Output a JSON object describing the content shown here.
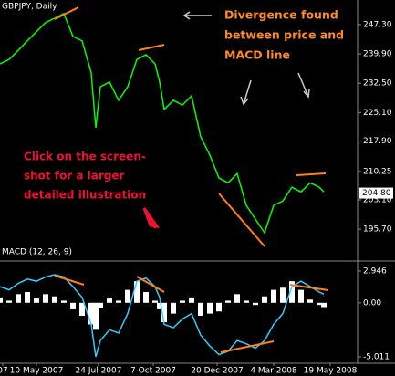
{
  "chart_data": [
    {
      "type": "line",
      "title": "GBPJPY, Daily",
      "x": [
        0,
        10,
        20,
        30,
        40,
        50,
        60,
        70,
        80,
        90,
        100,
        105,
        110,
        120,
        130,
        140,
        150,
        160,
        170,
        175,
        180,
        190,
        200,
        210,
        220,
        230,
        240,
        250,
        260,
        270,
        280,
        290,
        300,
        310,
        320,
        330,
        340,
        350,
        355
      ],
      "series": [
        {
          "color": "#00ff00",
          "values": [
            237.4,
            238.5,
            240.8,
            243.2,
            245.5,
            247.8,
            248.9,
            250.1,
            244.3,
            243.2,
            235.1,
            221.3,
            231.6,
            232.8,
            228.2,
            231.6,
            238.5,
            239.7,
            237.4,
            232.8,
            225.9,
            228.2,
            227.0,
            229.3,
            219.0,
            214.4,
            208.6,
            207.4,
            209.7,
            201.7,
            198.2,
            194.8,
            201.7,
            202.8,
            206.3,
            205.1,
            207.4,
            206.3,
            205.1
          ]
        }
      ],
      "xlim": [
        0,
        392
      ],
      "ylim": [
        187.9,
        253.5
      ],
      "yticks": [
        {
          "value": 247.3,
          "label": "247.30"
        },
        {
          "value": 239.9,
          "label": "239.90"
        },
        {
          "value": 232.5,
          "label": "232.50"
        },
        {
          "value": 225.1,
          "label": "225.10"
        },
        {
          "value": 217.9,
          "label": "217.90"
        },
        210.25,
        {
          "value": 203.1,
          "label": "203.10"
        },
        {
          "value": 195.7,
          "label": "195.70"
        }
      ],
      "last_value": {
        "value": 204.8,
        "label": "204.80"
      },
      "annotations": [
        "Divergence found",
        "between price and",
        "MACD line",
        "Click on the screen-",
        "shot for a larger",
        "detailed illustration"
      ]
    },
    {
      "type": "line",
      "title": "MACD (12, 26, 9)",
      "x": [
        0,
        10,
        20,
        30,
        40,
        50,
        60,
        70,
        80,
        90,
        100,
        105,
        110,
        120,
        130,
        140,
        150,
        160,
        170,
        175,
        180,
        190,
        200,
        210,
        220,
        230,
        240,
        250,
        260,
        270,
        280,
        290,
        300,
        310,
        320,
        330,
        340,
        350,
        355
      ],
      "series": [
        {
          "color": "#33ccff",
          "values": [
            1.5,
            1.2,
            1.8,
            2.2,
            2.0,
            2.4,
            2.6,
            2.4,
            1.5,
            0.5,
            -2.0,
            -5.0,
            -3.5,
            -2.5,
            -2.8,
            -1.0,
            2.0,
            2.3,
            1.5,
            0.5,
            -2.0,
            -2.3,
            -1.5,
            -1.0,
            -3.0,
            -4.0,
            -4.8,
            -4.5,
            -3.5,
            -3.8,
            -4.2,
            -3.5,
            -2.0,
            -1.0,
            1.5,
            2.0,
            1.5,
            1.0,
            0.8
          ]
        }
      ],
      "histogram": {
        "color": "#ffffff",
        "values": [
          0.5,
          0.2,
          0.8,
          1.0,
          0.4,
          0.8,
          0.6,
          0.2,
          -0.6,
          -1.2,
          -2.0,
          -2.5,
          -0.5,
          0.4,
          0.2,
          1.2,
          2.0,
          1.0,
          0.2,
          -0.6,
          -1.8,
          -1.0,
          0.2,
          0.5,
          -1.2,
          -1.0,
          -0.8,
          0.2,
          0.8,
          0.2,
          -0.2,
          0.6,
          1.2,
          1.4,
          2.0,
          1.2,
          0.3,
          -0.2,
          -0.4
        ]
      },
      "xlim": [
        0,
        392
      ],
      "ylim": [
        -5.6,
        3.79
      ],
      "yticks": [
        2.946,
        {
          "value": 0,
          "label": "0.00"
        },
        -5.011
      ],
      "xticks": [
        {
          "value": 3,
          "label": "07"
        },
        {
          "value": 40,
          "label": "10 May 2007"
        },
        {
          "value": 108,
          "label": "24 Jul 2007"
        },
        {
          "value": 168,
          "label": "7 Oct 2007"
        },
        {
          "value": 238,
          "label": "20 Dec 2007"
        },
        {
          "value": 300,
          "label": "4 Mar 2008"
        },
        {
          "value": 362,
          "label": "19 May 2008"
        }
      ]
    }
  ]
}
